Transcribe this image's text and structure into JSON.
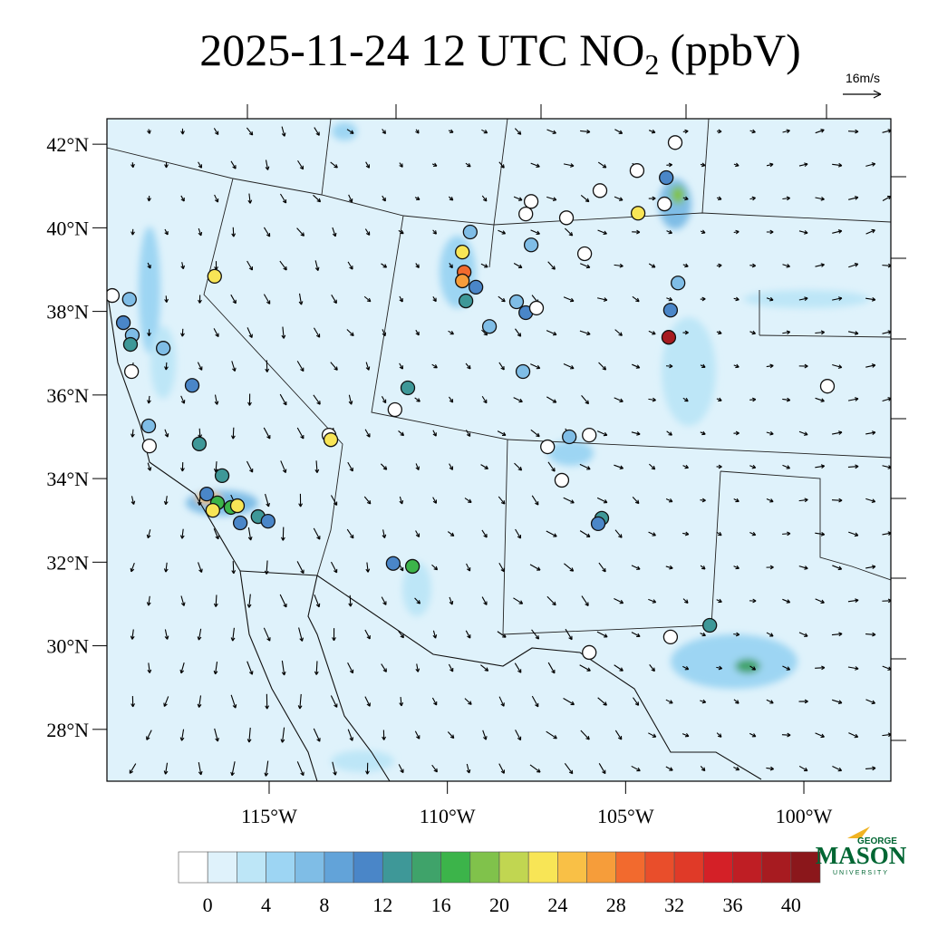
{
  "chart_data": {
    "type": "map",
    "title": "2025-11-24 12 UTC NO",
    "title_subscript": "2",
    "title_suffix": "(ppbV)",
    "wind_scale_label": "16m/s",
    "xlim": [
      -119.55,
      -97.56
    ],
    "ylim": [
      26.76,
      42.61
    ],
    "xticks": [
      {
        "value": -115,
        "label": "115°W"
      },
      {
        "value": -110,
        "label": "110°W"
      },
      {
        "value": -105,
        "label": "105°W"
      },
      {
        "value": -100,
        "label": "100°W"
      }
    ],
    "yticks": [
      {
        "value": 42,
        "label": "42°N"
      },
      {
        "value": 40,
        "label": "40°N"
      },
      {
        "value": 38,
        "label": "38°N"
      },
      {
        "value": 36,
        "label": "36°N"
      },
      {
        "value": 34,
        "label": "34°N"
      },
      {
        "value": 32,
        "label": "32°N"
      },
      {
        "value": 30,
        "label": "30°N"
      },
      {
        "value": 28,
        "label": "28°N"
      }
    ],
    "stations": {
      "lon": [
        -119.4,
        -119.09,
        -118.92,
        -118.84,
        -118.89,
        -117.97,
        -118.86,
        -117.16,
        -118.38,
        -118.36,
        -116.96,
        -116.53,
        -116.32,
        -116.75,
        -116.45,
        -116.07,
        -115.89,
        -116.58,
        -115.81,
        -115.31,
        -115.03,
        -113.32,
        -113.27,
        -111.47,
        -111.11,
        -111.52,
        -110.98,
        -109.58,
        -109.53,
        -109.58,
        -109.2,
        -109.48,
        -109.36,
        -108.82,
        -108.06,
        -107.8,
        -107.5,
        -107.88,
        -107.65,
        -107.8,
        -106.66,
        -107.65,
        -106.15,
        -105.72,
        -104.68,
        -103.61,
        -103.86,
        -103.91,
        -104.65,
        -103.53,
        -103.74,
        -103.79,
        -107.19,
        -106.58,
        -106.02,
        -106.79,
        -105.67,
        -105.77,
        -106.02,
        -103.74,
        -102.64,
        -99.34
      ],
      "lat": [
        38.38,
        37.73,
        38.29,
        37.43,
        37.21,
        37.12,
        36.56,
        36.23,
        35.26,
        34.78,
        34.83,
        38.84,
        34.07,
        33.63,
        33.42,
        33.31,
        33.35,
        33.24,
        32.94,
        33.09,
        32.98,
        35.04,
        34.93,
        35.65,
        36.17,
        31.97,
        31.9,
        39.42,
        38.94,
        38.73,
        38.58,
        38.25,
        39.9,
        37.64,
        38.23,
        37.97,
        38.08,
        36.56,
        40.63,
        40.33,
        40.24,
        39.59,
        39.38,
        40.89,
        41.37,
        42.04,
        41.2,
        40.57,
        40.35,
        38.68,
        38.03,
        37.38,
        34.76,
        35.0,
        35.04,
        33.96,
        33.05,
        32.92,
        29.84,
        30.21,
        30.49,
        36.21
      ],
      "values": [
        0,
        11,
        7,
        7,
        14,
        7,
        0,
        11,
        7,
        0,
        14,
        24,
        14,
        11,
        17,
        17,
        24,
        24,
        11,
        14,
        11,
        0,
        24,
        0,
        14,
        11,
        17,
        24,
        30,
        28,
        11,
        14,
        7,
        7,
        7,
        11,
        0,
        7,
        0,
        0,
        0,
        7,
        0,
        0,
        0,
        0,
        11,
        0,
        24,
        7,
        11,
        40,
        0,
        7,
        0,
        0,
        14,
        11,
        0,
        0,
        14,
        0
      ]
    },
    "colorbar": {
      "levels": [
        0,
        2,
        4,
        6,
        8,
        10,
        12,
        14,
        16,
        18,
        20,
        22,
        24,
        26,
        28,
        30,
        32,
        34,
        36,
        38,
        40
      ],
      "colors": [
        "#ffffff",
        "#dff2fb",
        "#bde6f7",
        "#9dd5f3",
        "#7fbde6",
        "#62a3d9",
        "#4a86c8",
        "#3e9898",
        "#3fa36a",
        "#3cb44a",
        "#80c24b",
        "#c1d651",
        "#f8e556",
        "#f9c046",
        "#f69d3a",
        "#f26a2e",
        "#e94e2b",
        "#e03a28",
        "#d42027",
        "#bf1e24",
        "#a71b20",
        "#8b171b"
      ],
      "ticks": [
        0,
        4,
        8,
        12,
        16,
        20,
        24,
        28,
        32,
        36,
        40
      ]
    }
  },
  "logo": {
    "top": "GEORGE",
    "main": "MASON",
    "bottom": "UNIVERSITY"
  }
}
